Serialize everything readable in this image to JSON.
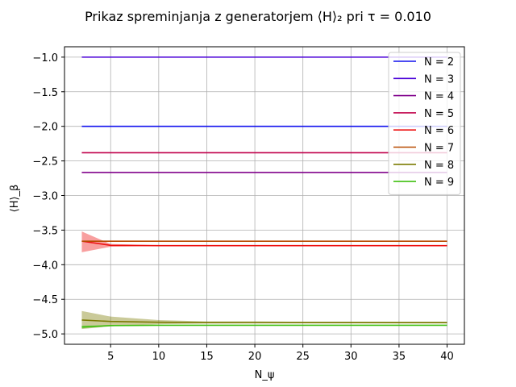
{
  "chart_data": {
    "type": "line",
    "title": "Prikaz spreminjanja z generatorjem ⟨H⟩₂ pri τ = 0.010",
    "xlabel": "N_ψ",
    "ylabel": "⟨H⟩_β",
    "xlim": [
      0.2,
      41.8
    ],
    "ylim": [
      -5.15,
      -0.85
    ],
    "xticks": [
      5,
      10,
      15,
      20,
      25,
      30,
      35,
      40
    ],
    "yticks": [
      -1.0,
      -1.5,
      -2.0,
      -2.5,
      -3.0,
      -3.5,
      -4.0,
      -4.5,
      -5.0
    ],
    "grid": true,
    "legend_position": "top-right",
    "x": [
      2,
      5,
      10,
      15,
      20,
      25,
      30,
      35,
      40
    ],
    "series": [
      {
        "name": "N = 2",
        "color": "#1010ee",
        "values": [
          -2.0,
          -2.0,
          -2.0,
          -2.0,
          -2.0,
          -2.0,
          -2.0,
          -2.0,
          -2.0
        ],
        "band_upper": null,
        "band_lower": null
      },
      {
        "name": "N = 3",
        "color": "#4a00d8",
        "values": [
          -1.0,
          -1.0,
          -1.0,
          -1.0,
          -1.0,
          -1.0,
          -1.0,
          -1.0,
          -1.0
        ],
        "band_upper": null,
        "band_lower": null
      },
      {
        "name": "N = 4",
        "color": "#80008c",
        "values": [
          -2.667,
          -2.667,
          -2.667,
          -2.667,
          -2.667,
          -2.667,
          -2.667,
          -2.667,
          -2.667
        ],
        "band_upper": null,
        "band_lower": null
      },
      {
        "name": "N = 5",
        "color": "#c0004a",
        "values": [
          -2.382,
          -2.382,
          -2.382,
          -2.382,
          -2.382,
          -2.382,
          -2.382,
          -2.382,
          -2.382
        ],
        "band_upper": null,
        "band_lower": null
      },
      {
        "name": "N = 6",
        "color": "#ee1010",
        "values": [
          -3.66,
          -3.72,
          -3.725,
          -3.725,
          -3.725,
          -3.725,
          -3.725,
          -3.725,
          -3.725
        ],
        "band_upper": [
          -3.52,
          -3.7,
          -3.72,
          -3.72,
          -3.72,
          -3.72,
          -3.72,
          -3.72,
          -3.72
        ],
        "band_lower": [
          -3.82,
          -3.74,
          -3.73,
          -3.73,
          -3.73,
          -3.73,
          -3.73,
          -3.73,
          -3.73
        ]
      },
      {
        "name": "N = 7",
        "color": "#b84a00",
        "values": [
          -3.66,
          -3.66,
          -3.66,
          -3.66,
          -3.66,
          -3.66,
          -3.66,
          -3.66,
          -3.66
        ],
        "band_upper": null,
        "band_lower": null
      },
      {
        "name": "N = 8",
        "color": "#7a7a00",
        "values": [
          -4.8,
          -4.82,
          -4.832,
          -4.836,
          -4.834,
          -4.835,
          -4.835,
          -4.836,
          -4.836
        ],
        "band_upper": [
          -4.67,
          -4.75,
          -4.8,
          -4.82,
          -4.82,
          -4.825,
          -4.825,
          -4.825,
          -4.825
        ],
        "band_lower": [
          -4.93,
          -4.89,
          -4.86,
          -4.85,
          -4.85,
          -4.848,
          -4.848,
          -4.848,
          -4.848
        ]
      },
      {
        "name": "N = 9",
        "color": "#40c010",
        "values": [
          -4.9,
          -4.88,
          -4.875,
          -4.875,
          -4.875,
          -4.875,
          -4.875,
          -4.875,
          -4.875
        ],
        "band_upper": [
          -4.88,
          -4.875,
          -4.872,
          -4.872,
          -4.872,
          -4.872,
          -4.872,
          -4.872,
          -4.872
        ],
        "band_lower": [
          -4.92,
          -4.885,
          -4.878,
          -4.878,
          -4.878,
          -4.878,
          -4.878,
          -4.878,
          -4.878
        ]
      }
    ]
  }
}
